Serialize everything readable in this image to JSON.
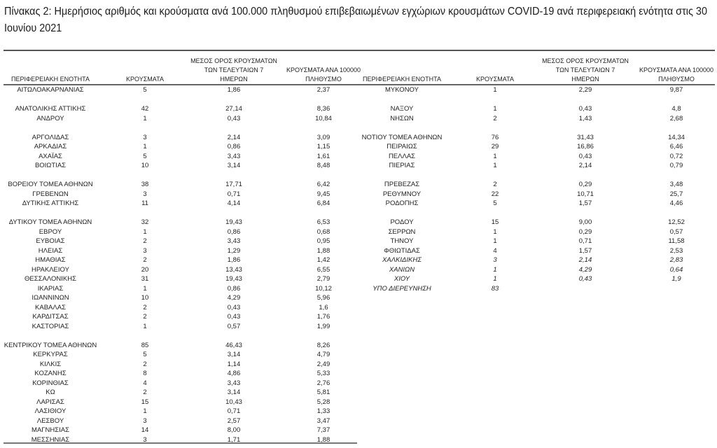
{
  "title": "Πίνακας 2: Ημερήσιος αριθμός και κρούσματα ανά 100.000 πληθυσμού επιβεβαιωμένων εγχώριων κρουσμάτων COVID-19 ανά περιφερειακή ενότητα στις 30 Ιουνίου 2021",
  "headers": {
    "region": "ΠΕΡΙΦΕΡΕΙΑΚΗ ΕΝΟΤΗΤΑ",
    "cases": "ΚΡΟΥΣΜΑΤΑ",
    "avg": "ΜΕΣΟΣ ΟΡΟΣ ΚΡΟΥΣΜΑΤΩΝ ΤΩΝ ΤΕΛΕΥΤΑΙΩΝ 7 ΗΜΕΡΩΝ",
    "avg_lines": [
      "ΜΕΣΟΣ ΟΡΟΣ ΚΡΟΥΣΜΑΤΩΝ",
      "ΤΩΝ ΤΕΛΕΥΤΑΙΩΝ 7",
      "ΗΜΕΡΩΝ"
    ],
    "per100k_lines": [
      "ΚΡΟΥΣΜΑΤΑ ΑΝΑ 100000",
      "ΠΛΗΘΥΣΜΟ"
    ]
  },
  "rows": [
    {
      "left": [
        "ΑΙΤΩΛΟΑΚΑΡΝΑΝΙΑΣ",
        "5",
        "1,86",
        "2,37"
      ],
      "right": [
        "ΜΥΚΟΝΟΥ",
        "1",
        "2,29",
        "9,87"
      ]
    },
    {
      "left": null,
      "right": null
    },
    {
      "left": [
        "ΑΝΑΤΟΛΙΚΗΣ ΑΤΤΙΚΗΣ",
        "42",
        "27,14",
        "8,36"
      ],
      "right": [
        "ΝΑΞΟΥ",
        "1",
        "0,43",
        "4,8"
      ]
    },
    {
      "left": [
        "ΑΝΔΡΟΥ",
        "1",
        "0,43",
        "10,84"
      ],
      "right": [
        "ΝΗΣΩΝ",
        "2",
        "1,43",
        "2,68"
      ]
    },
    {
      "left": null,
      "right": null
    },
    {
      "left": [
        "ΑΡΓΟΛΙΔΑΣ",
        "3",
        "2,14",
        "3,09"
      ],
      "right": [
        "ΝΟΤΙΟΥ ΤΟΜΕΑ ΑΘΗΝΩΝ",
        "76",
        "31,43",
        "14,34"
      ]
    },
    {
      "left": [
        "ΑΡΚΑΔΙΑΣ",
        "1",
        "0,86",
        "1,15"
      ],
      "right": [
        "ΠΕΙΡΑΙΩΣ",
        "29",
        "16,86",
        "6,46"
      ]
    },
    {
      "left": [
        "ΑΧΑΪΑΣ",
        "5",
        "3,43",
        "1,61"
      ],
      "right": [
        "ΠΕΛΛΑΣ",
        "1",
        "0,43",
        "0,72"
      ]
    },
    {
      "left": [
        "ΒΟΙΩΤΙΑΣ",
        "10",
        "3,14",
        "8,48"
      ],
      "right": [
        "ΠΙΕΡΙΑΣ",
        "1",
        "2,14",
        "0,79"
      ]
    },
    {
      "left": null,
      "right": null
    },
    {
      "left": [
        "ΒΟΡΕΙΟΥ ΤΟΜΕΑ ΑΘΗΝΩΝ",
        "38",
        "17,71",
        "6,42"
      ],
      "right": [
        "ΠΡΕΒΕΖΑΣ",
        "2",
        "0,29",
        "3,48"
      ]
    },
    {
      "left": [
        "ΓΡΕΒΕΝΩΝ",
        "3",
        "0,71",
        "9,45"
      ],
      "right": [
        "ΡΕΘΥΜΝΟΥ",
        "22",
        "10,71",
        "25,7"
      ]
    },
    {
      "left": [
        "ΔΥΤΙΚΗΣ ΑΤΤΙΚΗΣ",
        "11",
        "4,14",
        "6,84"
      ],
      "right": [
        "ΡΟΔΟΠΗΣ",
        "5",
        "1,57",
        "4,46"
      ]
    },
    {
      "left": null,
      "right": null
    },
    {
      "left": [
        "ΔΥΤΙΚΟΥ ΤΟΜΕΑ ΑΘΗΝΩΝ",
        "32",
        "19,43",
        "6,53"
      ],
      "right": [
        "ΡΟΔΟΥ",
        "15",
        "9,00",
        "12,52"
      ]
    },
    {
      "left": [
        "ΕΒΡΟΥ",
        "1",
        "0,86",
        "0,68"
      ],
      "right": [
        "ΣΕΡΡΩΝ",
        "1",
        "0,29",
        "0,57"
      ]
    },
    {
      "left": [
        "ΕΥΒΟΙΑΣ",
        "2",
        "3,43",
        "0,95"
      ],
      "right": [
        "ΤΗΝΟΥ",
        "1",
        "0,71",
        "11,58"
      ]
    },
    {
      "left": [
        "ΗΛΕΙΑΣ",
        "3",
        "1,29",
        "1,88"
      ],
      "right": [
        "ΦΘΙΩΤΙΔΑΣ",
        "4",
        "1,57",
        "2,53"
      ]
    },
    {
      "left": [
        "ΗΜΑΘΙΑΣ",
        "2",
        "1,86",
        "1,42"
      ],
      "right": [
        "ΧΑΛΚΙΔΙΚΗΣ",
        "3",
        "2,14",
        "2,83"
      ],
      "right_italic": true
    },
    {
      "left": [
        "ΗΡΑΚΛΕΙΟΥ",
        "20",
        "13,43",
        "6,55"
      ],
      "right": [
        "ΧΑΝΙΩΝ",
        "1",
        "4,29",
        "0,64"
      ],
      "right_italic": true
    },
    {
      "left": [
        "ΘΕΣΣΑΛΟΝΙΚΗΣ",
        "31",
        "19,43",
        "2,79"
      ],
      "right": [
        "ΧΙΟΥ",
        "1",
        "0,43",
        "1,9"
      ],
      "right_italic": true
    },
    {
      "left": [
        "ΙΚΑΡΙΑΣ",
        "1",
        "0,86",
        "10,12"
      ],
      "right": [
        "ΥΠΟ ΔΙΕΡΕΥΝΗΣΗ",
        "83",
        "",
        ""
      ],
      "right_italic": true
    },
    {
      "left": [
        "ΙΩΑΝΝΙΝΩΝ",
        "10",
        "4,29",
        "5,96"
      ],
      "right": null
    },
    {
      "left": [
        "ΚΑΒΑΛΑΣ",
        "2",
        "0,43",
        "1,6"
      ],
      "right": null
    },
    {
      "left": [
        "ΚΑΡΔΙΤΣΑΣ",
        "2",
        "0,43",
        "1,76"
      ],
      "right": null
    },
    {
      "left": [
        "ΚΑΣΤΟΡΙΑΣ",
        "1",
        "0,57",
        "1,99"
      ],
      "right": null
    },
    {
      "left": null,
      "right": null
    },
    {
      "left": [
        "ΚΕΝΤΡΙΚΟΥ ΤΟΜΕΑ ΑΘΗΝΩΝ",
        "85",
        "46,43",
        "8,26"
      ],
      "right": null
    },
    {
      "left": [
        "ΚΕΡΚΥΡΑΣ",
        "5",
        "3,14",
        "4,79"
      ],
      "right": null
    },
    {
      "left": [
        "ΚΙΛΚΙΣ",
        "2",
        "1,14",
        "2,49"
      ],
      "right": null
    },
    {
      "left": [
        "ΚΟΖΑΝΗΣ",
        "8",
        "4,86",
        "5,33"
      ],
      "right": null
    },
    {
      "left": [
        "ΚΟΡΙΝΘΙΑΣ",
        "4",
        "3,43",
        "2,76"
      ],
      "right": null
    },
    {
      "left": [
        "ΚΩ",
        "2",
        "3,14",
        "5,81"
      ],
      "right": null
    },
    {
      "left": [
        "ΛΑΡΙΣΑΣ",
        "15",
        "10,43",
        "5,28"
      ],
      "right": null
    },
    {
      "left": [
        "ΛΑΣΙΘΙΟΥ",
        "1",
        "0,71",
        "1,33"
      ],
      "right": null
    },
    {
      "left": [
        "ΛΕΣΒΟΥ",
        "3",
        "2,57",
        "3,47"
      ],
      "right": null
    },
    {
      "left": [
        "ΜΑΓΝΗΣΙΑΣ",
        "14",
        "8,00",
        "7,37"
      ],
      "right": null
    },
    {
      "left": [
        "ΜΕΣΣΗΝΙΑΣ",
        "3",
        "1,71",
        "1,88"
      ],
      "right": null
    }
  ]
}
